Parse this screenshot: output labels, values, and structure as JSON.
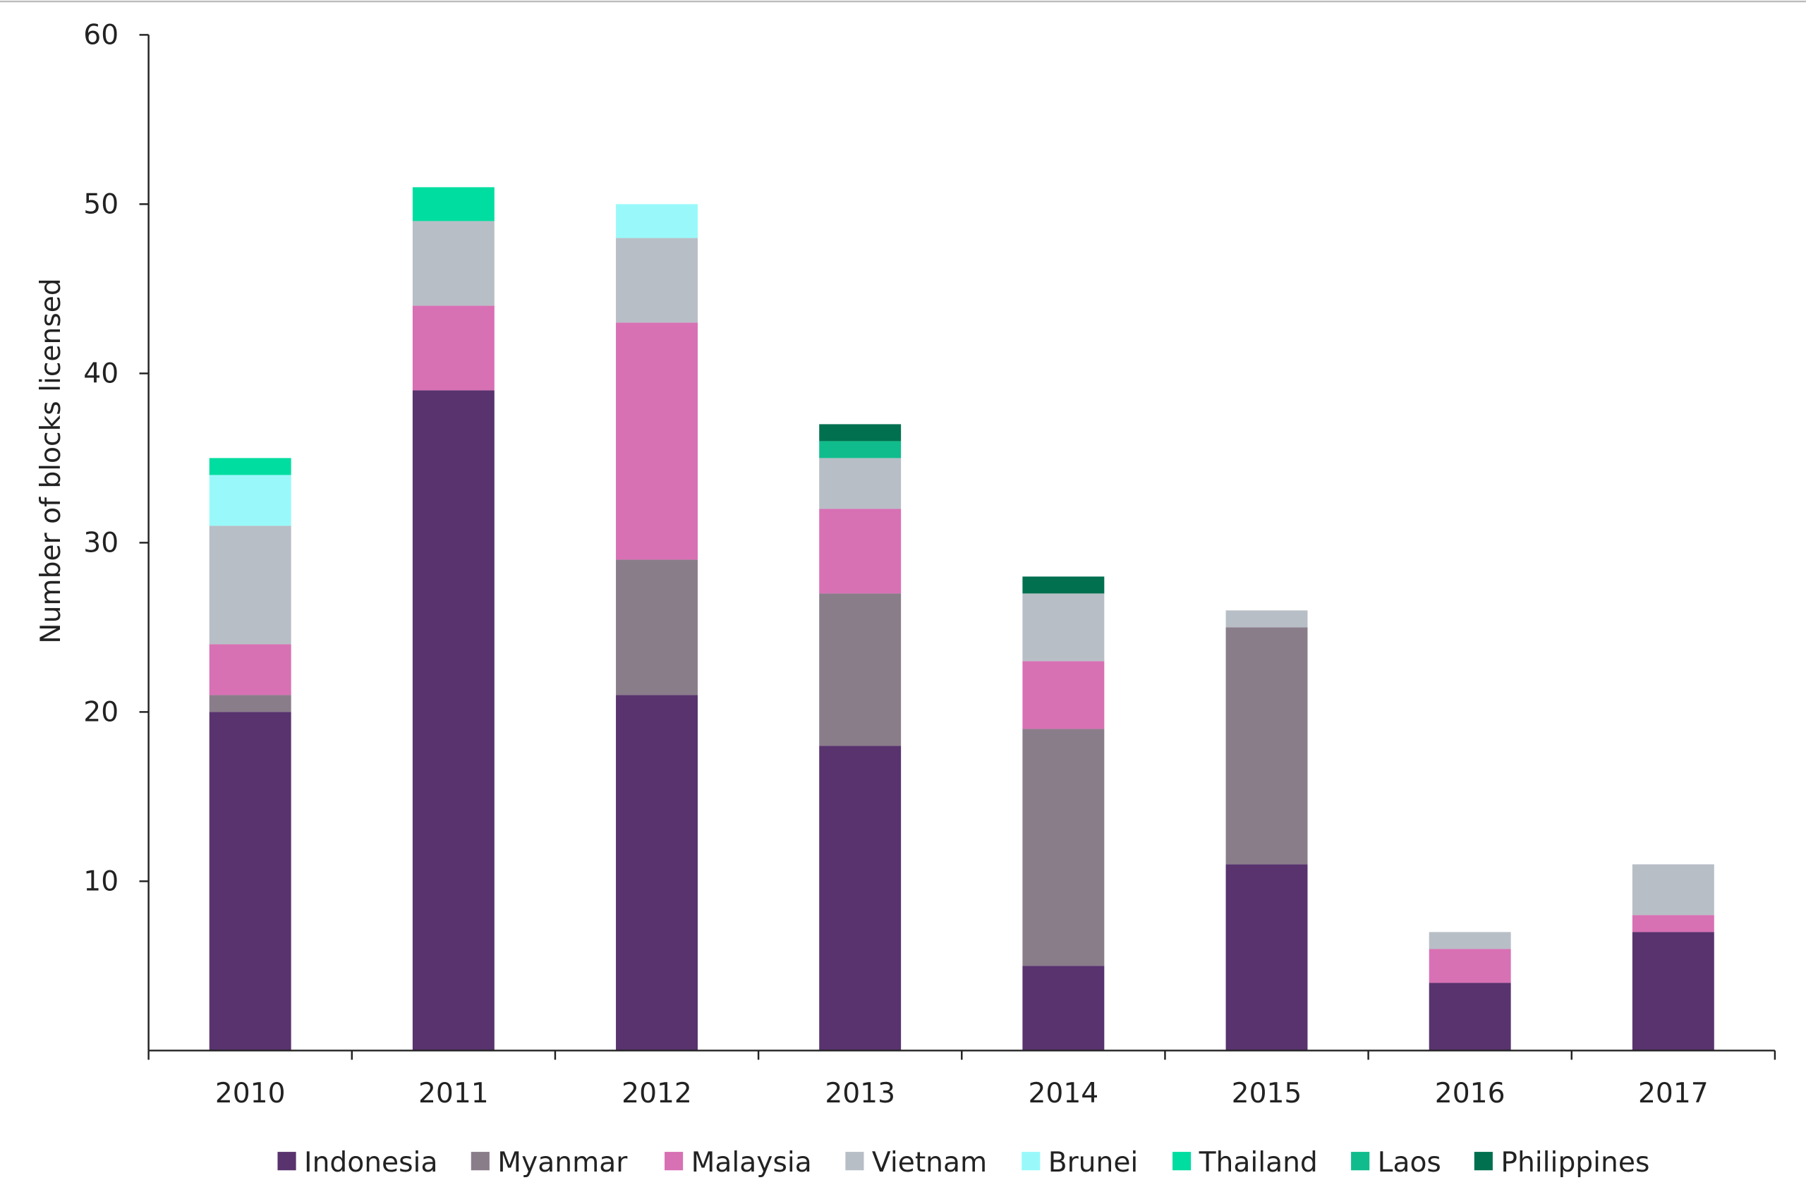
{
  "chart_data": {
    "type": "bar",
    "stacked": true,
    "title": "",
    "xlabel": "",
    "ylabel": "Number of blocks licensed",
    "ylim": [
      0,
      60
    ],
    "yticks": [
      10,
      20,
      30,
      40,
      50,
      60
    ],
    "grid": false,
    "legend_position": "bottom",
    "categories": [
      "2010",
      "2011",
      "2012",
      "2013",
      "2014",
      "2015",
      "2016",
      "2017"
    ],
    "series": [
      {
        "name": "Indonesia",
        "color": "#58336E",
        "values": [
          20,
          39,
          21,
          18,
          5,
          11,
          4,
          7
        ]
      },
      {
        "name": "Myanmar",
        "color": "#8A7D8A",
        "values": [
          1,
          0,
          8,
          9,
          14,
          14,
          0,
          0
        ]
      },
      {
        "name": "Malaysia",
        "color": "#D870B4",
        "values": [
          3,
          5,
          14,
          5,
          4,
          0,
          2,
          1
        ]
      },
      {
        "name": "Vietnam",
        "color": "#B8BEC6",
        "values": [
          7,
          5,
          5,
          3,
          4,
          1,
          1,
          3
        ]
      },
      {
        "name": "Brunei",
        "color": "#99F9FA",
        "values": [
          3,
          0,
          2,
          0,
          0,
          0,
          0,
          0
        ]
      },
      {
        "name": "Thailand",
        "color": "#00DDA0",
        "values": [
          1,
          2,
          0,
          0,
          0,
          0,
          0,
          0
        ]
      },
      {
        "name": "Laos",
        "color": "#10BC8C",
        "values": [
          0,
          0,
          0,
          1,
          0,
          0,
          0,
          0
        ]
      },
      {
        "name": "Philippines",
        "color": "#00704F",
        "values": [
          0,
          0,
          0,
          1,
          1,
          0,
          0,
          0
        ]
      }
    ]
  }
}
